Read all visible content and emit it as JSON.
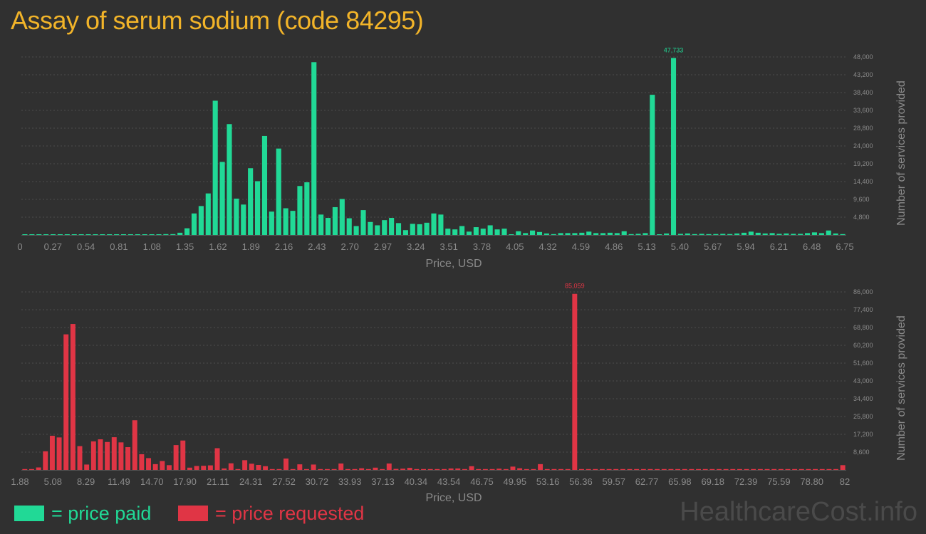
{
  "title": "Assay of serum sodium (code 84295)",
  "legend": [
    {
      "label": "= price paid",
      "color": "#21d996"
    },
    {
      "label": "= price requested",
      "color": "#e03545"
    }
  ],
  "watermark": "HealthcareCost.info",
  "chart_data": [
    {
      "type": "bar",
      "series": [
        {
          "name": "price paid",
          "color": "#21d996"
        }
      ],
      "xlabel": "Price, USD",
      "ylabel": "Number of services provided",
      "xlim": [
        0,
        6.75
      ],
      "x_ticks": [
        "0",
        "0.27",
        "0.54",
        "0.81",
        "1.08",
        "1.35",
        "1.62",
        "1.89",
        "2.16",
        "2.43",
        "2.70",
        "2.97",
        "3.24",
        "3.51",
        "3.78",
        "4.05",
        "4.32",
        "4.59",
        "4.86",
        "5.13",
        "5.40",
        "5.67",
        "5.94",
        "6.21",
        "6.48",
        "6.75"
      ],
      "y_ticks": [
        "4,800",
        "9,600",
        "14,400",
        "19,200",
        "24,000",
        "28,800",
        "33,600",
        "38,400",
        "43,200",
        "48,000"
      ],
      "ylim": [
        0,
        48000
      ],
      "grid": true,
      "peak_label": "47,733",
      "values": [
        0,
        0,
        0,
        0,
        0,
        0,
        0,
        0,
        0,
        0,
        0,
        0,
        0,
        0,
        0,
        0,
        0,
        0,
        0,
        0,
        100,
        200,
        600,
        1800,
        5800,
        7800,
        11200,
        36200,
        19700,
        29900,
        9800,
        8200,
        18000,
        14500,
        26700,
        6300,
        23300,
        7200,
        6500,
        13200,
        14200,
        46600,
        5500,
        4600,
        7500,
        9700,
        4500,
        2400,
        6700,
        3500,
        2600,
        4000,
        4600,
        3200,
        1300,
        3000,
        2900,
        3300,
        5800,
        5500,
        1700,
        1500,
        2400,
        900,
        2100,
        1700,
        2600,
        1500,
        1700,
        0,
        1000,
        500,
        1200,
        800,
        400,
        200,
        500,
        500,
        500,
        600,
        900,
        500,
        500,
        600,
        500,
        1000,
        200,
        300,
        500,
        37800,
        0,
        400,
        47733,
        300,
        400,
        200,
        300,
        200,
        250,
        300,
        250,
        400,
        600,
        900,
        600,
        400,
        500,
        300,
        400,
        300,
        300,
        500,
        700,
        500,
        1200,
        400,
        150
      ]
    },
    {
      "type": "bar",
      "series": [
        {
          "name": "price requested",
          "color": "#e03545"
        }
      ],
      "xlabel": "Price, USD",
      "ylabel": "Number of services provided",
      "xlim": [
        1.88,
        82
      ],
      "x_ticks": [
        "1.88",
        "5.08",
        "8.29",
        "11.49",
        "14.70",
        "17.90",
        "21.11",
        "24.31",
        "27.52",
        "30.72",
        "33.93",
        "37.13",
        "40.34",
        "43.54",
        "46.75",
        "49.95",
        "53.16",
        "56.36",
        "59.57",
        "62.77",
        "65.98",
        "69.18",
        "72.39",
        "75.59",
        "78.80",
        "82"
      ],
      "y_ticks": [
        "8,600",
        "17,200",
        "25,800",
        "34,400",
        "43,000",
        "51,600",
        "60,200",
        "68,800",
        "77,400",
        "86,000"
      ],
      "ylim": [
        0,
        86000
      ],
      "grid": true,
      "peak_label": "85,059",
      "values": [
        300,
        400,
        1200,
        9000,
        16500,
        15700,
        65500,
        70500,
        11500,
        2600,
        13800,
        14800,
        13500,
        15800,
        13300,
        11000,
        24000,
        7600,
        5700,
        2800,
        4300,
        2300,
        12000,
        14200,
        1100,
        1900,
        2000,
        2200,
        10500,
        700,
        3200,
        400,
        4700,
        3000,
        2400,
        1800,
        400,
        300,
        5500,
        300,
        2700,
        300,
        2600,
        300,
        400,
        300,
        3100,
        300,
        300,
        800,
        200,
        1100,
        200,
        3100,
        500,
        600,
        1000,
        300,
        400,
        300,
        200,
        200,
        700,
        700,
        400,
        1800,
        400,
        200,
        200,
        600,
        300,
        1600,
        800,
        200,
        300,
        2800,
        100,
        100,
        200,
        300,
        85059,
        100,
        200,
        100,
        200,
        300,
        200,
        200,
        100,
        100,
        100,
        100,
        100,
        100,
        100,
        100,
        100,
        100,
        100,
        100,
        100,
        100,
        100,
        100,
        100,
        100,
        100,
        100,
        100,
        100,
        100,
        100,
        100,
        100,
        100,
        100,
        100,
        100,
        100,
        2300
      ]
    }
  ]
}
